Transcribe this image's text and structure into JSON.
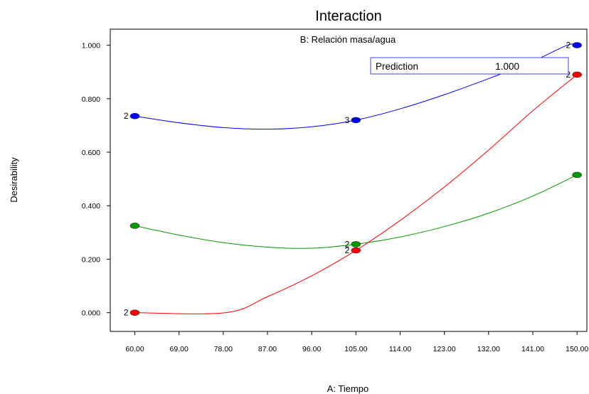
{
  "chart_data": {
    "type": "line",
    "title": "Interaction",
    "subtitle": "B: Relación masa/agua",
    "xlabel": "A: Tiempo",
    "ylabel": "Desirability",
    "xlim": [
      55,
      152
    ],
    "ylim": [
      -0.07,
      1.06
    ],
    "x_ticks": [
      "60.00",
      "69.00",
      "78.00",
      "87.00",
      "96.00",
      "105.00",
      "114.00",
      "123.00",
      "132.00",
      "141.00",
      "150.00"
    ],
    "x_tick_values": [
      60,
      69,
      78,
      87,
      96,
      105,
      114,
      123,
      132,
      141,
      150
    ],
    "y_ticks": [
      "0.000",
      "0.200",
      "0.400",
      "0.600",
      "0.800",
      "1.000"
    ],
    "y_tick_values": [
      0,
      0.2,
      0.4,
      0.6,
      0.8,
      1.0
    ],
    "grid": false,
    "series": [
      {
        "color": "#0000ff",
        "markers": [
          {
            "x": 60,
            "y": 0.735,
            "label": "2"
          },
          {
            "x": 105,
            "y": 0.72,
            "label": "3"
          },
          {
            "x": 150,
            "y": 1.0,
            "label": "2"
          }
        ],
        "curve": [
          [
            60,
            0.735
          ],
          [
            69,
            0.71
          ],
          [
            78,
            0.692
          ],
          [
            87,
            0.686
          ],
          [
            96,
            0.695
          ],
          [
            105,
            0.72
          ],
          [
            114,
            0.762
          ],
          [
            123,
            0.815
          ],
          [
            132,
            0.875
          ],
          [
            141,
            0.94
          ],
          [
            148,
            1.0
          ],
          [
            150,
            1.0
          ]
        ]
      },
      {
        "color": "#009900",
        "markers": [
          {
            "x": 60,
            "y": 0.325,
            "label": ""
          },
          {
            "x": 105,
            "y": 0.256,
            "label": "2"
          },
          {
            "x": 150,
            "y": 0.515,
            "label": ""
          }
        ],
        "curve": [
          [
            60,
            0.325
          ],
          [
            69,
            0.29
          ],
          [
            78,
            0.262
          ],
          [
            87,
            0.245
          ],
          [
            96,
            0.241
          ],
          [
            105,
            0.256
          ],
          [
            114,
            0.283
          ],
          [
            123,
            0.322
          ],
          [
            132,
            0.372
          ],
          [
            141,
            0.436
          ],
          [
            150,
            0.515
          ]
        ]
      },
      {
        "color": "#ff0000",
        "markers": [
          {
            "x": 60,
            "y": 0.0,
            "label": "2"
          },
          {
            "x": 105,
            "y": 0.233,
            "label": "2"
          },
          {
            "x": 150,
            "y": 0.89,
            "label": "2"
          }
        ],
        "curve": [
          [
            60,
            0.0
          ],
          [
            78.5,
            0.0
          ],
          [
            87,
            0.06
          ],
          [
            96,
            0.138
          ],
          [
            105,
            0.233
          ],
          [
            114,
            0.345
          ],
          [
            123,
            0.47
          ],
          [
            132,
            0.608
          ],
          [
            141,
            0.755
          ],
          [
            150,
            0.89
          ]
        ]
      }
    ],
    "annotation": {
      "label": "Prediction",
      "value": "1.000"
    }
  }
}
